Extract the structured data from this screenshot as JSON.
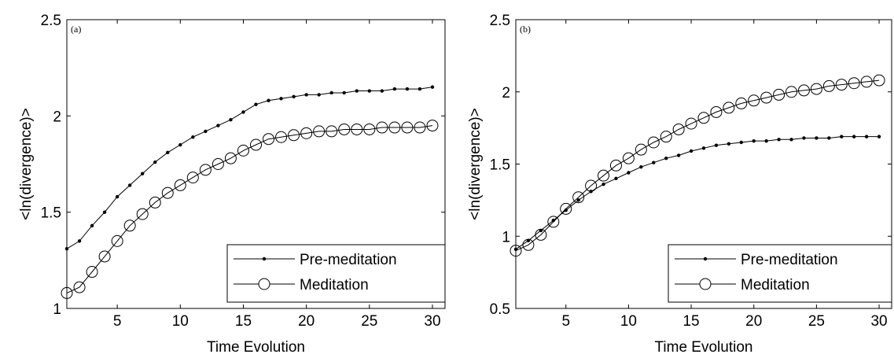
{
  "chart_data": [
    {
      "type": "line",
      "panel_label": "(a)",
      "xlabel": "Time Evolution",
      "ylabel": "<ln(divergence)>",
      "xlim": [
        1,
        31
      ],
      "ylim": [
        1,
        2.5
      ],
      "xticks": [
        5,
        10,
        15,
        20,
        25,
        30
      ],
      "yticks": [
        1,
        1.5,
        2,
        2.5
      ],
      "ytick_labels": [
        "1",
        "1.5",
        "2",
        "2.5"
      ],
      "grid": false,
      "legend_position": "bottom-right",
      "x": [
        1,
        2,
        3,
        4,
        5,
        6,
        7,
        8,
        9,
        10,
        11,
        12,
        13,
        14,
        15,
        16,
        17,
        18,
        19,
        20,
        21,
        22,
        23,
        24,
        25,
        26,
        27,
        28,
        29,
        30
      ],
      "series": [
        {
          "name": "Pre-meditation",
          "marker": "dot",
          "values": [
            1.31,
            1.35,
            1.43,
            1.5,
            1.58,
            1.64,
            1.7,
            1.76,
            1.81,
            1.85,
            1.89,
            1.92,
            1.95,
            1.98,
            2.02,
            2.06,
            2.08,
            2.09,
            2.1,
            2.11,
            2.11,
            2.12,
            2.12,
            2.13,
            2.13,
            2.13,
            2.14,
            2.14,
            2.14,
            2.15
          ]
        },
        {
          "name": "Meditation",
          "marker": "circle",
          "values": [
            1.08,
            1.11,
            1.19,
            1.27,
            1.35,
            1.43,
            1.49,
            1.55,
            1.6,
            1.64,
            1.68,
            1.72,
            1.75,
            1.78,
            1.82,
            1.85,
            1.88,
            1.89,
            1.9,
            1.91,
            1.92,
            1.92,
            1.93,
            1.93,
            1.93,
            1.94,
            1.94,
            1.94,
            1.94,
            1.95
          ]
        }
      ]
    },
    {
      "type": "line",
      "panel_label": "(b)",
      "xlabel": "Time Evolution",
      "ylabel": "<ln(divergence)>",
      "xlim": [
        1,
        31
      ],
      "ylim": [
        0.5,
        2.5
      ],
      "xticks": [
        5,
        10,
        15,
        20,
        25,
        30
      ],
      "yticks": [
        0.5,
        1,
        1.5,
        2,
        2.5
      ],
      "ytick_labels": [
        "0.5",
        "1",
        "1.5",
        "2",
        "2.5"
      ],
      "grid": false,
      "legend_position": "bottom-right",
      "x": [
        1,
        2,
        3,
        4,
        5,
        6,
        7,
        8,
        9,
        10,
        11,
        12,
        13,
        14,
        15,
        16,
        17,
        18,
        19,
        20,
        21,
        22,
        23,
        24,
        25,
        26,
        27,
        28,
        29,
        30
      ],
      "series": [
        {
          "name": "Pre-meditation",
          "marker": "dot",
          "values": [
            0.91,
            0.97,
            1.04,
            1.11,
            1.18,
            1.25,
            1.31,
            1.36,
            1.4,
            1.44,
            1.48,
            1.51,
            1.54,
            1.56,
            1.59,
            1.61,
            1.63,
            1.64,
            1.65,
            1.66,
            1.66,
            1.67,
            1.67,
            1.68,
            1.68,
            1.68,
            1.69,
            1.69,
            1.69,
            1.69
          ]
        },
        {
          "name": "Meditation",
          "marker": "circle",
          "values": [
            0.9,
            0.94,
            1.01,
            1.1,
            1.19,
            1.27,
            1.35,
            1.42,
            1.49,
            1.54,
            1.6,
            1.65,
            1.69,
            1.74,
            1.78,
            1.82,
            1.86,
            1.89,
            1.92,
            1.94,
            1.96,
            1.98,
            2.0,
            2.01,
            2.02,
            2.04,
            2.05,
            2.06,
            2.07,
            2.08
          ]
        }
      ]
    }
  ]
}
